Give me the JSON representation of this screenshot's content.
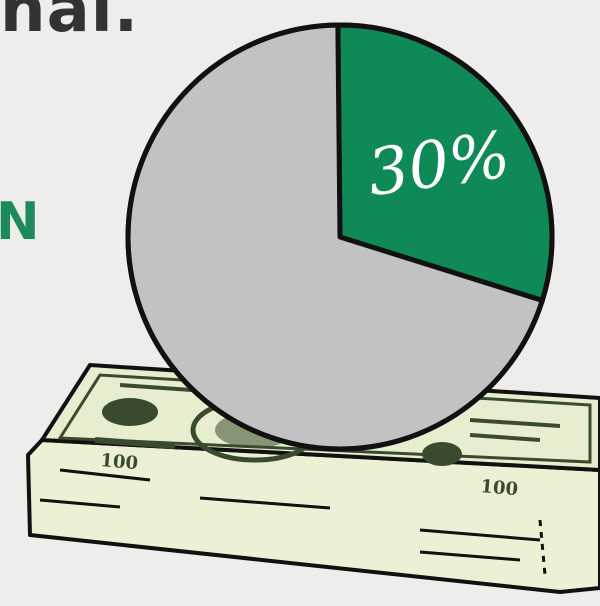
{
  "headline_fragment": "nal.",
  "side_fragment": "N",
  "colors": {
    "background": "#eeedeb",
    "headline": "#333333",
    "accent_green": "#0f8a57",
    "pie_gray": "#c2c2c2",
    "outline": "#111111",
    "bill_paper": "#ecf1d6",
    "bill_ink": "#3a4a2e"
  },
  "chart_data": {
    "type": "pie",
    "slices": [
      {
        "label": "30%",
        "value": 30,
        "color": "#0f8a57"
      },
      {
        "label": "",
        "value": 70,
        "color": "#c2c2c2"
      }
    ]
  },
  "illustration": {
    "subject": "stack of 100 dollar bills",
    "bill_denomination_text": "100"
  }
}
